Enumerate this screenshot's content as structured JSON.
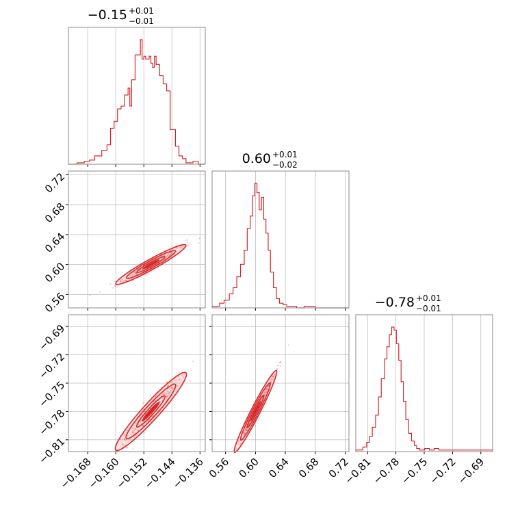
{
  "chart_data": {
    "type": "corner",
    "color": "#d62728",
    "grid": true,
    "parameters": [
      {
        "title": {
          "median": "−0.15",
          "plus": "+0.01",
          "minus": "−0.01"
        },
        "range": [
          -0.1735,
          -0.1345
        ],
        "ticks": [
          -0.168,
          -0.16,
          -0.152,
          -0.144,
          -0.136
        ],
        "tick_labels": [
          "−0.168",
          "−0.160",
          "−0.152",
          "−0.144",
          "−0.136"
        ],
        "histogram": {
          "edges": [
            -0.1735,
            -0.171,
            -0.169,
            -0.1675,
            -0.166,
            -0.164,
            -0.1625,
            -0.1615,
            -0.1605,
            -0.1595,
            -0.1585,
            -0.1575,
            -0.1565,
            -0.156,
            -0.1555,
            -0.1545,
            -0.1535,
            -0.153,
            -0.1525,
            -0.152,
            -0.1515,
            -0.1505,
            -0.15,
            -0.1495,
            -0.149,
            -0.1485,
            -0.1475,
            -0.1465,
            -0.1455,
            -0.1445,
            -0.143,
            -0.142,
            -0.141,
            -0.14,
            -0.138,
            -0.1365,
            -0.1345
          ],
          "counts": [
            0,
            1,
            2,
            3,
            6,
            10,
            14,
            26,
            31,
            40,
            42,
            50,
            55,
            42,
            61,
            79,
            79,
            90,
            76,
            78,
            76,
            78,
            73,
            70,
            78,
            72,
            64,
            58,
            53,
            25,
            13,
            6,
            4,
            1,
            2,
            0
          ]
        }
      },
      {
        "title": {
          "median": "0.60",
          "plus": "+0.01",
          "minus": "−0.02"
        },
        "range": [
          0.542,
          0.725
        ],
        "ticks": [
          0.56,
          0.6,
          0.64,
          0.68,
          0.72
        ],
        "tick_labels": [
          "0.56",
          "0.60",
          "0.64",
          "0.68",
          "0.72"
        ],
        "histogram": {
          "edges": [
            0.542,
            0.552,
            0.558,
            0.565,
            0.57,
            0.575,
            0.58,
            0.585,
            0.589,
            0.593,
            0.596,
            0.599,
            0.602,
            0.605,
            0.608,
            0.611,
            0.614,
            0.617,
            0.62,
            0.624,
            0.628,
            0.632,
            0.637,
            0.642,
            0.647,
            0.655,
            0.665,
            0.68,
            0.725
          ],
          "counts": [
            1,
            3,
            5,
            9,
            13,
            20,
            28,
            37,
            51,
            59,
            72,
            80,
            74,
            63,
            71,
            57,
            48,
            37,
            23,
            13,
            6,
            3,
            2,
            1,
            1,
            0,
            1,
            0
          ]
        }
      },
      {
        "title": {
          "median": "−0.78",
          "plus": "+0.01",
          "minus": "−0.01"
        },
        "range": [
          -0.8225,
          -0.6775
        ],
        "ticks": [
          -0.81,
          -0.78,
          -0.75,
          -0.72,
          -0.69
        ],
        "tick_labels": [
          "−0.81",
          "−0.78",
          "−0.75",
          "−0.72",
          "−0.69"
        ],
        "histogram": {
          "edges": [
            -0.8225,
            -0.815,
            -0.811,
            -0.808,
            -0.805,
            -0.8015,
            -0.7985,
            -0.7955,
            -0.792,
            -0.7895,
            -0.787,
            -0.7845,
            -0.782,
            -0.7795,
            -0.777,
            -0.7745,
            -0.772,
            -0.7695,
            -0.7665,
            -0.7635,
            -0.7605,
            -0.758,
            -0.755,
            -0.7495,
            -0.7445,
            -0.7395,
            -0.7345,
            -0.6775
          ],
          "counts": [
            1,
            3,
            6,
            10,
            16,
            24,
            36,
            48,
            61,
            69,
            77,
            82,
            80,
            71,
            60,
            46,
            33,
            21,
            12,
            7,
            4,
            2,
            1,
            2,
            1,
            2,
            1
          ]
        }
      }
    ],
    "pair_correlations": {
      "1_0": {
        "slope": 2.6,
        "center": [
          -0.15,
          0.6
        ],
        "spread": 0.0035,
        "sd_x": 0.005
      },
      "2_0": {
        "slope": 4.1,
        "center": [
          -0.15,
          -0.78
        ],
        "spread": 0.0055,
        "sd_x": 0.005
      },
      "2_1": {
        "slope": 1.55,
        "center": [
          0.6,
          -0.78
        ],
        "spread": 0.0022,
        "sd_x": 0.014
      }
    }
  }
}
